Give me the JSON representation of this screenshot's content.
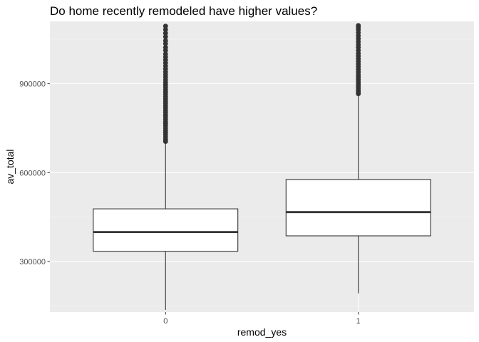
{
  "chart_data": {
    "type": "box",
    "title": "Do home recently remodeled have higher values?",
    "xlabel": "remod_yes",
    "ylabel": "av_total",
    "categories": [
      "0",
      "1"
    ],
    "ylim": [
      130000,
      1110000
    ],
    "y_ticks": [
      300000,
      600000,
      900000
    ],
    "y_tick_labels": [
      "300000",
      "600000",
      "900000"
    ],
    "grid": true,
    "boxes": [
      {
        "category": "0",
        "whisker_low": 137000,
        "q1": 335000,
        "median": 400000,
        "q3": 478000,
        "whisker_high": 700000,
        "outliers": [
          705000,
          712000,
          720000,
          728000,
          735000,
          742000,
          750000,
          758000,
          765000,
          772000,
          780000,
          788000,
          795000,
          803000,
          810000,
          818000,
          825000,
          833000,
          840000,
          848000,
          856000,
          864000,
          872000,
          880000,
          888000,
          896000,
          904000,
          913000,
          922000,
          931000,
          940000,
          950000,
          960000,
          970000,
          980000,
          990000,
          1000000,
          1012000,
          1022000,
          1035000,
          1045000,
          1058000,
          1070000,
          1082000,
          1094000
        ]
      },
      {
        "category": "1",
        "whisker_low": 193000,
        "q1": 387000,
        "median": 467000,
        "q3": 577000,
        "whisker_high": 862000,
        "outliers": [
          866000,
          872000,
          878000,
          885000,
          892000,
          899000,
          906000,
          914000,
          922000,
          930000,
          939000,
          948000,
          957000,
          966000,
          975000,
          984000,
          993000,
          1002000,
          1012000,
          1022000,
          1032000,
          1042000,
          1052000,
          1062000,
          1072000,
          1082000,
          1090000,
          1096000
        ]
      }
    ],
    "colors": {
      "panel_background": "#ebebeb",
      "grid_major": "#ffffff",
      "grid_minor": "#f5f5f5",
      "box_fill": "#ffffff",
      "box_line": "#333333",
      "outlier": "#333333"
    }
  }
}
